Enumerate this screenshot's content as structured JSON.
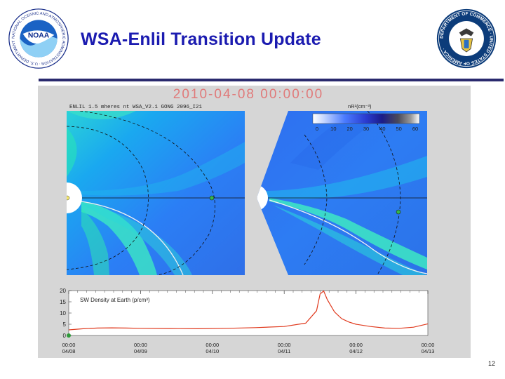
{
  "slide": {
    "title": "WSA-Enlil Transition Update",
    "page_number": "12",
    "noaa_logo_text": "NOAA",
    "noaa_ring_text": "NATIONAL OCEANIC AND ATMOSPHERIC ADMINISTRATION · U.S. DEPARTMENT OF COMMERCE ·",
    "doc_ring_text": "DEPARTMENT OF COMMERCE · UNITED STATES OF AMERICA ·"
  },
  "figure": {
    "timestamp": "2010-04-08 00:00:00",
    "model_label": "ENLIL 1.5 mheres  nt  WSA_V2.1  GONG  2096_I21",
    "colorbar_label": "nR²(cm⁻³)",
    "colorbar_ticks": [
      "0",
      "10",
      "20",
      "30",
      "40",
      "50",
      "60"
    ],
    "colorbar_colors": [
      "#ffffff",
      "#c8d8ff",
      "#4a7bff",
      "#2a3bd0",
      "#1b1c8a",
      "#4a4a5a",
      "#9a9a9a",
      "#ffffff"
    ],
    "density_title": "SW Density at Earth (p/cm³)"
  },
  "chart_data": {
    "type": "line",
    "title": "SW Density at Earth (p/cm³)",
    "xlabel": "",
    "ylabel": "",
    "ylim": [
      0,
      20
    ],
    "yticks": [
      "0",
      "5",
      "10",
      "15",
      "20"
    ],
    "xticks": [
      {
        "time": "00:00",
        "date": "04/08"
      },
      {
        "time": "00:00",
        "date": "04/09"
      },
      {
        "time": "00:00",
        "date": "04/10"
      },
      {
        "time": "00:00",
        "date": "04/11"
      },
      {
        "time": "00:00",
        "date": "04/12"
      },
      {
        "time": "00:00",
        "date": "04/13"
      }
    ],
    "x_days": [
      0,
      0.2,
      0.4,
      0.6,
      0.8,
      1.0,
      1.4,
      1.8,
      2.2,
      2.6,
      3.0,
      3.3,
      3.45,
      3.5,
      3.55,
      3.6,
      3.7,
      3.8,
      3.9,
      4.0,
      4.2,
      4.4,
      4.6,
      4.8,
      5.0
    ],
    "series": [
      {
        "values": [
          2.5,
          3.0,
          3.3,
          3.4,
          3.3,
          3.2,
          3.1,
          3.0,
          3.2,
          3.5,
          4.0,
          5.5,
          11.0,
          18.5,
          19.8,
          16.0,
          10.5,
          7.5,
          6.0,
          5.0,
          4.0,
          3.3,
          3.2,
          3.7,
          5.2
        ],
        "color": "#e03a1e"
      }
    ],
    "marker_color": "#2e9a3a",
    "grid": false
  }
}
